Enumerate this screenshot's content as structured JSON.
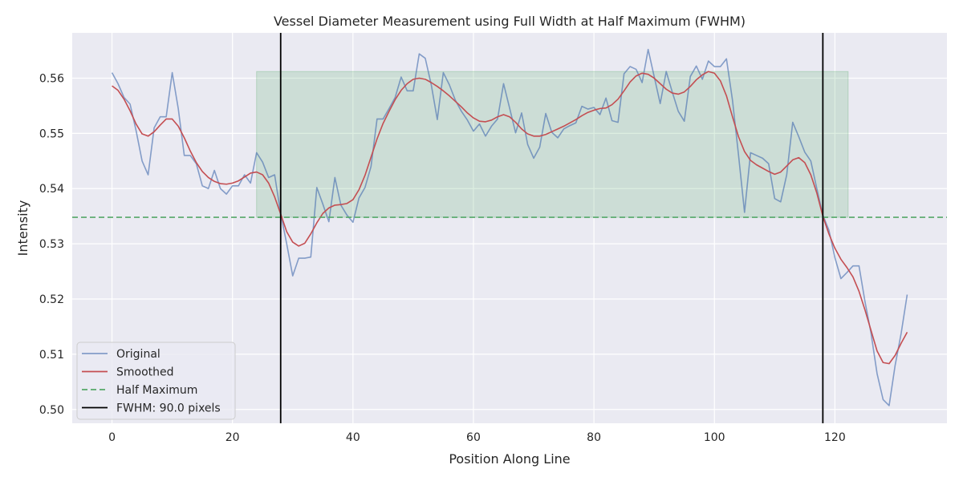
{
  "chart_data": {
    "type": "line",
    "title": "Vessel Diameter Measurement using Full Width at Half Maximum (FWHM)",
    "xlabel": "Position Along Line",
    "ylabel": "Intensity",
    "xlim": [
      -6.6,
      138.6
    ],
    "ylim": [
      0.4975,
      0.5682
    ],
    "xticks": [
      0,
      20,
      40,
      60,
      80,
      100,
      120
    ],
    "yticks": [
      0.5,
      0.51,
      0.52,
      0.53,
      0.54,
      0.55,
      0.56
    ],
    "xtick_labels": [
      "0",
      "20",
      "40",
      "60",
      "80",
      "100",
      "120"
    ],
    "ytick_labels": [
      "0.50",
      "0.51",
      "0.52",
      "0.53",
      "0.54",
      "0.55",
      "0.56"
    ],
    "grid": true,
    "legend_position": "lower-left",
    "series": [
      {
        "name": "Original",
        "color": "#4c72b0",
        "x": [
          0,
          1,
          2,
          3,
          4,
          5,
          6,
          7,
          8,
          9,
          10,
          11,
          12,
          13,
          14,
          15,
          16,
          17,
          18,
          19,
          20,
          21,
          22,
          23,
          24,
          25,
          26,
          27,
          28,
          29,
          30,
          31,
          32,
          33,
          34,
          35,
          36,
          37,
          38,
          39,
          40,
          41,
          42,
          43,
          44,
          45,
          46,
          47,
          48,
          49,
          50,
          51,
          52,
          53,
          54,
          55,
          56,
          57,
          58,
          59,
          60,
          61,
          62,
          63,
          64,
          65,
          66,
          67,
          68,
          69,
          70,
          71,
          72,
          73,
          74,
          75,
          76,
          77,
          78,
          79,
          80,
          81,
          82,
          83,
          84,
          85,
          86,
          87,
          88,
          89,
          90,
          91,
          92,
          93,
          94,
          95,
          96,
          97,
          98,
          99,
          100,
          101,
          102,
          103,
          104,
          105,
          106,
          107,
          108,
          109,
          110,
          111,
          112,
          113,
          114,
          115,
          116,
          117,
          118,
          119,
          120,
          121,
          122,
          123,
          124,
          125,
          126,
          127,
          128,
          129,
          130,
          131,
          132
        ],
        "y": [
          0.561,
          0.559,
          0.5565,
          0.5553,
          0.5505,
          0.545,
          0.5425,
          0.551,
          0.553,
          0.553,
          0.561,
          0.5545,
          0.546,
          0.546,
          0.5445,
          0.5405,
          0.54,
          0.5433,
          0.54,
          0.539,
          0.5405,
          0.5405,
          0.5425,
          0.541,
          0.5465,
          0.5448,
          0.542,
          0.5425,
          0.5355,
          0.53,
          0.5242,
          0.5274,
          0.5274,
          0.5276,
          0.5402,
          0.5372,
          0.534,
          0.542,
          0.537,
          0.5352,
          0.5339,
          0.5383,
          0.5402,
          0.544,
          0.5526,
          0.5526,
          0.5545,
          0.5565,
          0.5602,
          0.5577,
          0.5577,
          0.5644,
          0.5636,
          0.5588,
          0.5525,
          0.561,
          0.5588,
          0.556,
          0.554,
          0.5524,
          0.5504,
          0.5517,
          0.5495,
          0.5513,
          0.5526,
          0.559,
          0.5546,
          0.5501,
          0.5537,
          0.548,
          0.5455,
          0.5475,
          0.5536,
          0.5502,
          0.5492,
          0.5508,
          0.5514,
          0.5519,
          0.5549,
          0.5544,
          0.5547,
          0.5534,
          0.5564,
          0.5523,
          0.552,
          0.5608,
          0.5621,
          0.5616,
          0.5592,
          0.5652,
          0.5603,
          0.5554,
          0.5612,
          0.5575,
          0.554,
          0.5522,
          0.5603,
          0.5622,
          0.5598,
          0.5631,
          0.5621,
          0.5621,
          0.5635,
          0.556,
          0.5461,
          0.5357,
          0.5465,
          0.546,
          0.5455,
          0.5445,
          0.5382,
          0.5376,
          0.5425,
          0.552,
          0.5494,
          0.5466,
          0.545,
          0.54,
          0.5352,
          0.5325,
          0.5275,
          0.5237,
          0.5248,
          0.526,
          0.526,
          0.5195,
          0.5138,
          0.5065,
          0.5018,
          0.5007,
          0.508,
          0.5138,
          0.5208
        ]
      },
      {
        "name": "Smoothed",
        "color": "#c44e52",
        "x": [
          0,
          1,
          2,
          3,
          4,
          5,
          6,
          7,
          8,
          9,
          10,
          11,
          12,
          13,
          14,
          15,
          16,
          17,
          18,
          19,
          20,
          21,
          22,
          23,
          24,
          25,
          26,
          27,
          28,
          29,
          30,
          31,
          32,
          33,
          34,
          35,
          36,
          37,
          38,
          39,
          40,
          41,
          42,
          43,
          44,
          45,
          46,
          47,
          48,
          49,
          50,
          51,
          52,
          53,
          54,
          55,
          56,
          57,
          58,
          59,
          60,
          61,
          62,
          63,
          64,
          65,
          66,
          67,
          68,
          69,
          70,
          71,
          72,
          73,
          74,
          75,
          76,
          77,
          78,
          79,
          80,
          81,
          82,
          83,
          84,
          85,
          86,
          87,
          88,
          89,
          90,
          91,
          92,
          93,
          94,
          95,
          96,
          97,
          98,
          99,
          100,
          101,
          102,
          103,
          104,
          105,
          106,
          107,
          108,
          109,
          110,
          111,
          112,
          113,
          114,
          115,
          116,
          117,
          118,
          119,
          120,
          121,
          122,
          123,
          124,
          125,
          126,
          127,
          128,
          129,
          130,
          131,
          132
        ],
        "y": [
          0.5586,
          0.5578,
          0.5562,
          0.5541,
          0.5517,
          0.5499,
          0.5495,
          0.5503,
          0.5515,
          0.5526,
          0.5526,
          0.5513,
          0.5492,
          0.5468,
          0.5447,
          0.5431,
          0.542,
          0.5413,
          0.5409,
          0.5408,
          0.541,
          0.5414,
          0.5421,
          0.5428,
          0.543,
          0.5425,
          0.541,
          0.5385,
          0.5354,
          0.5322,
          0.5303,
          0.5296,
          0.5301,
          0.5318,
          0.5338,
          0.5355,
          0.5365,
          0.537,
          0.5371,
          0.5373,
          0.538,
          0.5398,
          0.5424,
          0.5457,
          0.549,
          0.5518,
          0.554,
          0.5561,
          0.5578,
          0.559,
          0.5598,
          0.56,
          0.5598,
          0.5592,
          0.5585,
          0.5577,
          0.5568,
          0.5558,
          0.5548,
          0.5537,
          0.5528,
          0.5522,
          0.5521,
          0.5524,
          0.553,
          0.5534,
          0.553,
          0.552,
          0.5508,
          0.5499,
          0.5495,
          0.5495,
          0.5498,
          0.5503,
          0.5508,
          0.5513,
          0.5519,
          0.5525,
          0.5532,
          0.5538,
          0.5542,
          0.5545,
          0.5546,
          0.5552,
          0.5562,
          0.5577,
          0.5593,
          0.5604,
          0.5609,
          0.5607,
          0.56,
          0.559,
          0.558,
          0.5573,
          0.5571,
          0.5575,
          0.5585,
          0.5597,
          0.5606,
          0.5612,
          0.5609,
          0.5595,
          0.5568,
          0.553,
          0.5494,
          0.5467,
          0.5451,
          0.5443,
          0.5437,
          0.5431,
          0.5426,
          0.543,
          0.5441,
          0.5452,
          0.5456,
          0.5447,
          0.5425,
          0.5392,
          0.535,
          0.5318,
          0.5292,
          0.5272,
          0.5257,
          0.524,
          0.5214,
          0.518,
          0.5143,
          0.5106,
          0.5085,
          0.5083,
          0.5098,
          0.512,
          0.514
        ]
      },
      {
        "name": "Half Maximum",
        "color": "#55a868",
        "style": "dashed",
        "y": 0.5348
      },
      {
        "name": "FWHM: 90.0 pixels",
        "color": "#000000",
        "style": "vertical-lines",
        "x": [
          28,
          118
        ]
      }
    ],
    "shaded_region": {
      "x": [
        24,
        122.2
      ],
      "y": [
        0.5348,
        0.5612
      ],
      "color": "#55a868",
      "opacity": 0.2
    }
  }
}
